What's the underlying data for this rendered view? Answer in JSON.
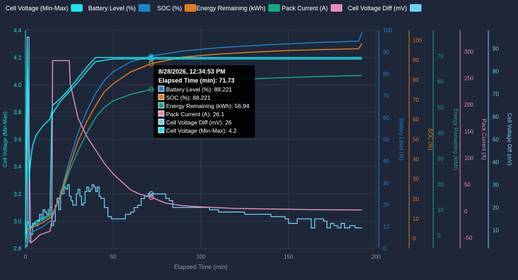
{
  "colors": {
    "background": "#1e2738",
    "grid": "#2c3a4f",
    "cell_voltage": "#19e6f0",
    "battery_level": "#1f82c8",
    "soc": "#e07a1f",
    "energy": "#15a884",
    "pack_current": "#e38bb8",
    "cell_voltage_diff": "#6fd0ef"
  },
  "legend": [
    {
      "label": "Cell Voltage (Min-Max)",
      "color": "#19e6f0"
    },
    {
      "label": "Battery Level (%)",
      "color": "#1f82c8"
    },
    {
      "label": "SOC (%)",
      "color": "#e07a1f"
    },
    {
      "label": "Energy Remaining (kWh)",
      "color": "#15a884"
    },
    {
      "label": "Pack Current (A)",
      "color": "#e38bb8"
    },
    {
      "label": "Cell Voltage Diff (mV)",
      "color": "#6fd0ef"
    }
  ],
  "tooltip": {
    "time": "8/28/2026, 12:34:53 PM",
    "elapsed": "Elapsed Time (min): 71.73",
    "rows": [
      {
        "text": "Battery Level (%): 88.221",
        "color": "#1f82c8"
      },
      {
        "text": "SOC (%): 88.221",
        "color": "#e07a1f"
      },
      {
        "text": "Energy Remaining (kWh): 56.94",
        "color": "#15a884"
      },
      {
        "text": "Pack Current (A): 26.1",
        "color": "#e38bb8"
      },
      {
        "text": "Cell Voltage Diff (mV): 26",
        "color": "#6fd0ef"
      },
      {
        "text": "Cell Voltage (Min-Max): 4.2",
        "color": "#19e6f0"
      }
    ]
  },
  "chart_data": {
    "type": "line",
    "title": "",
    "xlabel": "Elapsed Time (min)",
    "xlim": [
      0,
      200
    ],
    "xticks": [
      0,
      50,
      100,
      150,
      200
    ],
    "legend_position": "top",
    "grid": true,
    "axes": [
      {
        "key": "cell_voltage",
        "label": "Cell Voltage (Min-Max)",
        "side": "left",
        "ylim": [
          2.8,
          4.4
        ],
        "ticks": [
          2.8,
          3.0,
          3.2,
          3.4,
          3.6,
          3.8,
          4.0,
          4.2,
          4.4
        ],
        "color": "#19e6f0"
      },
      {
        "key": "battery_level",
        "label": "Battery Level (%)",
        "side": "right",
        "ylim": [
          0,
          100
        ],
        "ticks": [
          0,
          10,
          20,
          30,
          40,
          50,
          60,
          70,
          80,
          90,
          100
        ],
        "color": "#1f82c8"
      },
      {
        "key": "soc",
        "label": "SOC (%)",
        "side": "right",
        "ylim": [
          -5,
          105
        ],
        "ticks": [
          0,
          10,
          20,
          30,
          40,
          50,
          60,
          70,
          80,
          90,
          100
        ],
        "color": "#e07a1f"
      },
      {
        "key": "energy",
        "label": "Energy Remaining (kWh)",
        "side": "right",
        "ylim": [
          -5,
          80
        ],
        "ticks": [
          0,
          10,
          20,
          30,
          40,
          50,
          60,
          70
        ],
        "color": "#15a884"
      },
      {
        "key": "pack_current",
        "label": "Pack Current (A)",
        "side": "right",
        "ylim": [
          -70,
          340
        ],
        "ticks": [
          -50,
          0,
          50,
          100,
          150,
          200,
          250,
          300
        ],
        "color": "#e38bb8"
      },
      {
        "key": "cell_voltage_diff",
        "label": "Cell Voltage Diff (mV)",
        "side": "right",
        "ylim": [
          2,
          98
        ],
        "ticks": [
          10,
          20,
          30,
          40,
          50,
          60,
          70,
          80,
          90
        ],
        "color": "#6fd0ef"
      }
    ],
    "series": [
      {
        "name": "Cell Voltage (Min-Max)",
        "axis": "cell_voltage",
        "color": "#19e6f0",
        "step": false,
        "points": [
          [
            0,
            2.9
          ],
          [
            1,
            4.28
          ],
          [
            2,
            3.3
          ],
          [
            3,
            3.45
          ],
          [
            4,
            3.55
          ],
          [
            6,
            3.63
          ],
          [
            10,
            3.7
          ],
          [
            14,
            3.75
          ],
          [
            15,
            3.8
          ],
          [
            15.5,
            3.85
          ],
          [
            20,
            3.9
          ],
          [
            25,
            3.97
          ],
          [
            30,
            4.05
          ],
          [
            35,
            4.13
          ],
          [
            40,
            4.2
          ],
          [
            60,
            4.2
          ],
          [
            100,
            4.2
          ],
          [
            150,
            4.2
          ],
          [
            192,
            4.2
          ]
        ]
      },
      {
        "name": "Cell Voltage (Min-Max)",
        "axis": "cell_voltage",
        "color": "#19e6f0",
        "step": false,
        "points": [
          [
            0,
            2.85
          ],
          [
            1,
            3.0
          ],
          [
            3,
            2.95
          ],
          [
            6,
            3.0
          ],
          [
            10,
            3.02
          ],
          [
            14,
            3.05
          ],
          [
            15,
            3.78
          ],
          [
            20,
            3.88
          ],
          [
            25,
            3.95
          ],
          [
            30,
            4.02
          ],
          [
            35,
            4.1
          ],
          [
            40,
            4.17
          ],
          [
            50,
            4.19
          ],
          [
            100,
            4.19
          ],
          [
            150,
            4.19
          ],
          [
            192,
            4.19
          ]
        ]
      },
      {
        "name": "Battery Level (%)",
        "axis": "battery_level",
        "color": "#1f82c8",
        "step": false,
        "points": [
          [
            0,
            5
          ],
          [
            5,
            8
          ],
          [
            10,
            10
          ],
          [
            15,
            13
          ],
          [
            20,
            25
          ],
          [
            25,
            40
          ],
          [
            30,
            53
          ],
          [
            35,
            63
          ],
          [
            40,
            71
          ],
          [
            45,
            77
          ],
          [
            50,
            81
          ],
          [
            60,
            85.5
          ],
          [
            71.73,
            88.2
          ],
          [
            90,
            90.5
          ],
          [
            110,
            92
          ],
          [
            130,
            93
          ],
          [
            150,
            93.8
          ],
          [
            170,
            94.5
          ],
          [
            190,
            95
          ],
          [
            191,
            97
          ],
          [
            192,
            99
          ]
        ]
      },
      {
        "name": "SOC (%)",
        "axis": "soc",
        "color": "#e07a1f",
        "step": false,
        "points": [
          [
            0,
            4
          ],
          [
            5,
            6
          ],
          [
            10,
            8
          ],
          [
            15,
            11
          ],
          [
            20,
            22
          ],
          [
            25,
            36
          ],
          [
            30,
            49
          ],
          [
            35,
            59
          ],
          [
            40,
            67
          ],
          [
            45,
            74
          ],
          [
            50,
            78
          ],
          [
            60,
            84
          ],
          [
            71.73,
            88.2
          ],
          [
            90,
            91.5
          ],
          [
            110,
            93
          ],
          [
            130,
            94
          ],
          [
            150,
            94.8
          ],
          [
            170,
            95.3
          ],
          [
            190,
            95.7
          ],
          [
            191,
            97
          ],
          [
            192,
            98.5
          ]
        ]
      },
      {
        "name": "Energy Remaining (kWh)",
        "axis": "energy",
        "color": "#15a884",
        "step": false,
        "points": [
          [
            0,
            2
          ],
          [
            5,
            4
          ],
          [
            10,
            6
          ],
          [
            15,
            8
          ],
          [
            20,
            15
          ],
          [
            25,
            25
          ],
          [
            30,
            33
          ],
          [
            35,
            40
          ],
          [
            40,
            46
          ],
          [
            45,
            50
          ],
          [
            50,
            52.5
          ],
          [
            60,
            55
          ],
          [
            71.73,
            56.94
          ],
          [
            90,
            59
          ],
          [
            110,
            60.3
          ],
          [
            130,
            61.1
          ],
          [
            150,
            61.6
          ],
          [
            170,
            62.0
          ],
          [
            192,
            62.4
          ]
        ]
      },
      {
        "name": "Pack Current (A)",
        "axis": "pack_current",
        "color": "#e38bb8",
        "step": false,
        "points": [
          [
            0,
            -30
          ],
          [
            1,
            290
          ],
          [
            2,
            150
          ],
          [
            3,
            -60
          ],
          [
            5,
            -55
          ],
          [
            8,
            -45
          ],
          [
            12,
            -40
          ],
          [
            14,
            -38
          ],
          [
            15,
            -20
          ],
          [
            15.5,
            283
          ],
          [
            25,
            283
          ],
          [
            25.5,
            240
          ],
          [
            30,
            175
          ],
          [
            35,
            140
          ],
          [
            40,
            115
          ],
          [
            45,
            90
          ],
          [
            50,
            70
          ],
          [
            55,
            55
          ],
          [
            60,
            40
          ],
          [
            65,
            32
          ],
          [
            71.73,
            26.1
          ],
          [
            80,
            15
          ],
          [
            90,
            10
          ],
          [
            100,
            8
          ],
          [
            120,
            5
          ],
          [
            140,
            4
          ],
          [
            160,
            3
          ],
          [
            192,
            2
          ]
        ]
      },
      {
        "name": "Cell Voltage Diff (mV)",
        "axis": "cell_voltage_diff",
        "color": "#6fd0ef",
        "step": true,
        "points": [
          [
            0,
            3
          ],
          [
            1,
            95
          ],
          [
            2,
            5
          ],
          [
            3,
            8
          ],
          [
            4,
            13
          ],
          [
            6,
            12
          ],
          [
            7,
            14
          ],
          [
            8,
            17
          ],
          [
            9,
            15
          ],
          [
            10,
            19
          ],
          [
            11,
            18
          ],
          [
            12,
            17
          ],
          [
            13,
            19
          ],
          [
            14,
            20
          ],
          [
            15,
            12
          ],
          [
            16,
            14
          ],
          [
            17,
            21
          ],
          [
            18,
            24
          ],
          [
            19,
            19
          ],
          [
            20,
            27
          ],
          [
            21,
            26
          ],
          [
            22,
            29
          ],
          [
            23,
            28
          ],
          [
            24,
            30
          ],
          [
            25,
            25
          ],
          [
            26,
            23
          ],
          [
            27,
            21
          ],
          [
            28,
            21
          ],
          [
            29,
            26
          ],
          [
            30,
            28
          ],
          [
            31,
            25
          ],
          [
            32,
            21
          ],
          [
            33,
            22
          ],
          [
            34,
            27
          ],
          [
            35,
            29
          ],
          [
            36,
            27
          ],
          [
            37,
            28
          ],
          [
            38,
            30
          ],
          [
            39,
            29
          ],
          [
            40,
            27
          ],
          [
            41,
            29
          ],
          [
            42,
            25
          ],
          [
            43,
            24
          ],
          [
            45,
            20
          ],
          [
            47,
            16
          ],
          [
            49,
            15
          ],
          [
            52,
            15
          ],
          [
            55,
            15
          ],
          [
            57,
            17
          ],
          [
            60,
            18
          ],
          [
            62,
            20
          ],
          [
            64,
            21
          ],
          [
            66,
            24
          ],
          [
            68,
            25
          ],
          [
            70,
            26
          ],
          [
            71.73,
            26
          ],
          [
            74,
            26
          ],
          [
            78,
            26
          ],
          [
            80,
            24
          ],
          [
            82,
            23
          ],
          [
            84,
            20
          ],
          [
            86,
            20
          ],
          [
            90,
            20
          ],
          [
            95,
            20
          ],
          [
            100,
            20
          ],
          [
            105,
            19
          ],
          [
            110,
            18
          ],
          [
            115,
            18
          ],
          [
            120,
            18
          ],
          [
            125,
            17
          ],
          [
            130,
            17
          ],
          [
            135,
            17
          ],
          [
            140,
            16
          ],
          [
            145,
            16
          ],
          [
            148,
            15
          ],
          [
            150,
            13
          ],
          [
            155,
            15
          ],
          [
            160,
            15
          ],
          [
            163,
            11
          ],
          [
            165,
            15
          ],
          [
            170,
            14
          ],
          [
            172,
            11
          ],
          [
            174,
            13
          ],
          [
            176,
            12
          ],
          [
            178,
            11
          ],
          [
            180,
            13
          ],
          [
            182,
            11
          ],
          [
            185,
            12
          ],
          [
            188,
            11
          ],
          [
            190,
            11
          ],
          [
            192,
            11
          ]
        ]
      }
    ],
    "hover": {
      "x": 71.73
    }
  }
}
